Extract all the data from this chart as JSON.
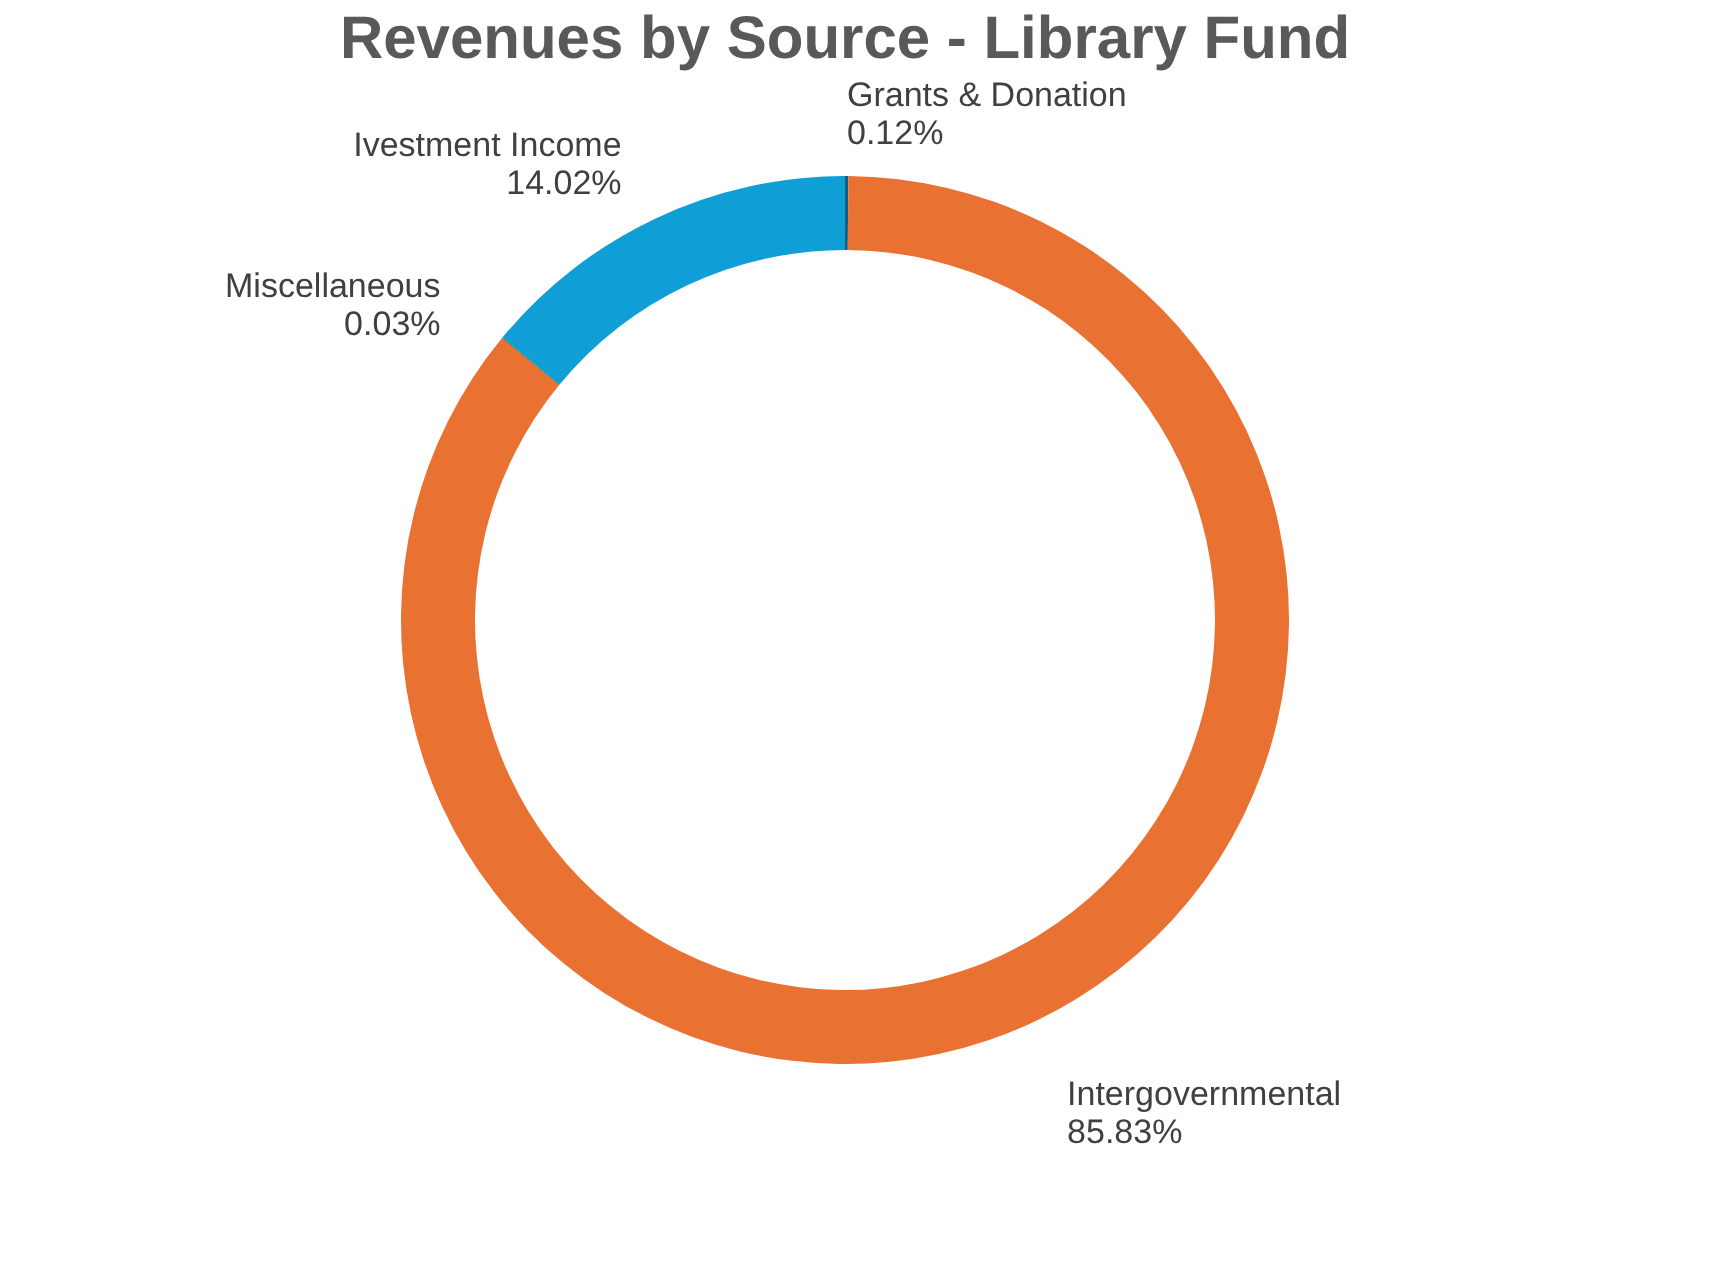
{
  "chart_data": {
    "type": "donut",
    "title": "Revenues by Source - Library Fund",
    "categories": [
      "Grants & Donation",
      "Intergovernmental",
      "Miscellaneous",
      "Ivestment Income"
    ],
    "values": [
      0.12,
      85.83,
      0.03,
      14.02
    ],
    "value_labels": [
      "0.12%",
      "85.83%",
      "0.03%",
      "14.02%"
    ],
    "colors": [
      "#156082",
      "#e97132",
      "#196b24",
      "#0f9ed5"
    ],
    "legend": false
  }
}
